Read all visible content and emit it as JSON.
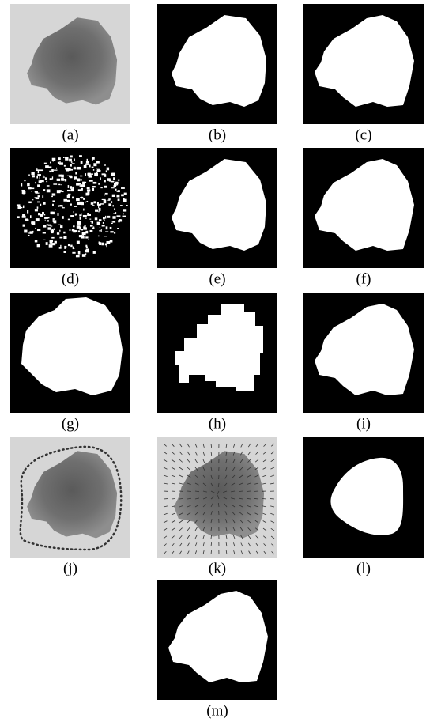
{
  "panels": [
    {
      "label": "(a)"
    },
    {
      "label": "(b)"
    },
    {
      "label": "(c)"
    },
    {
      "label": "(d)"
    },
    {
      "label": "(e)"
    },
    {
      "label": "(f)"
    },
    {
      "label": "(g)"
    },
    {
      "label": "(h)"
    },
    {
      "label": "(i)"
    },
    {
      "label": "(j)"
    },
    {
      "label": "(k)"
    },
    {
      "label": "(l)"
    },
    {
      "label": "(m)"
    }
  ]
}
